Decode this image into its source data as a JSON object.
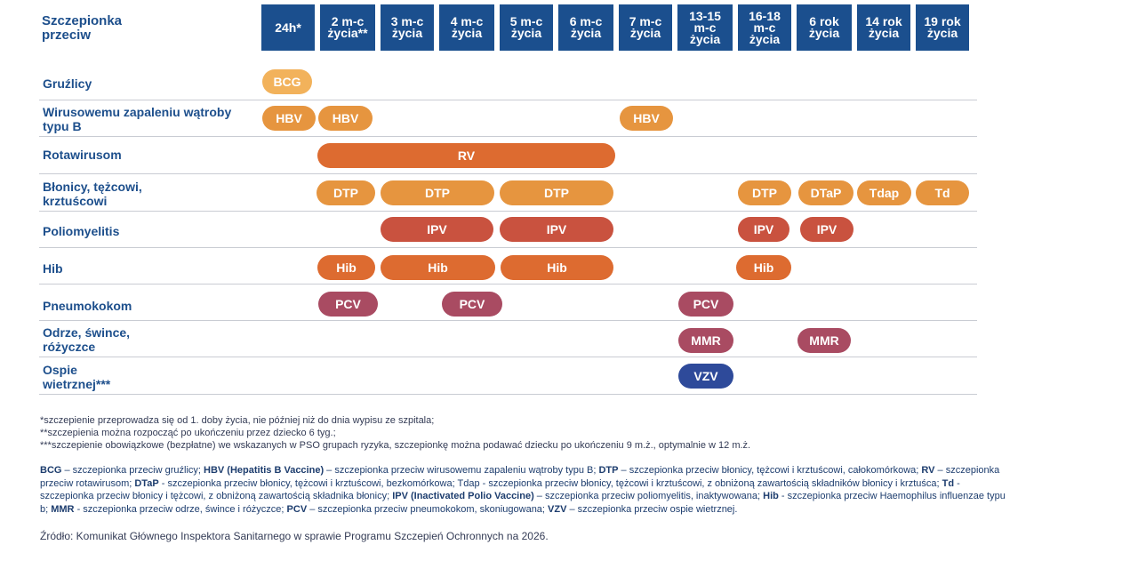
{
  "header": {
    "corner_label": "Szczepionka\nprzeciw"
  },
  "ages": [
    "24h*",
    "2 m-c\nżycia**",
    "3 m-c\nżycia",
    "4 m-c\nżycia",
    "5 m-c\nżycia",
    "6 m-c\nżycia",
    "7 m-c\nżycia",
    "13-15\nm-c\nżycia",
    "16-18\nm-c\nżycia",
    "6 rok\nżycia",
    "14 rok\nżycia",
    "19 rok\nżycia"
  ],
  "rows": [
    {
      "label": "Gruźlicy",
      "vaccines": [
        {
          "name": "BCG"
        }
      ]
    },
    {
      "label": "Wirusowemu zapaleniu wątroby\ntypu B",
      "vaccines": [
        {
          "name": "HBV"
        },
        {
          "name": "HBV"
        },
        {
          "name": "HBV"
        }
      ]
    },
    {
      "label": "Rotawirusom",
      "vaccines": [
        {
          "name": "RV"
        }
      ]
    },
    {
      "label": "Błonicy, tężcowi,\nkrztuścowi",
      "vaccines": [
        {
          "name": "DTP"
        },
        {
          "name": "DTP"
        },
        {
          "name": "DTP"
        },
        {
          "name": "DTP"
        },
        {
          "name": "DTaP"
        },
        {
          "name": "Tdap"
        },
        {
          "name": "Td"
        }
      ]
    },
    {
      "label": "Poliomyelitis",
      "vaccines": [
        {
          "name": "IPV"
        },
        {
          "name": "IPV"
        },
        {
          "name": "IPV"
        },
        {
          "name": "IPV"
        }
      ]
    },
    {
      "label": "Hib",
      "vaccines": [
        {
          "name": "Hib"
        },
        {
          "name": "Hib"
        },
        {
          "name": "Hib"
        },
        {
          "name": "Hib"
        }
      ]
    },
    {
      "label": "Pneumokokom",
      "vaccines": [
        {
          "name": "PCV"
        },
        {
          "name": "PCV"
        },
        {
          "name": "PCV"
        }
      ]
    },
    {
      "label": "Odrze, śwince,\nróżyczce",
      "vaccines": [
        {
          "name": "MMR"
        },
        {
          "name": "MMR"
        }
      ]
    },
    {
      "label": "Ospie\nwietrznej***",
      "vaccines": [
        {
          "name": "VZV"
        }
      ]
    }
  ],
  "footnotes": [
    "*szczepienie przeprowadza się od 1. doby życia, nie później niż do dnia wypisu ze szpitala;",
    "**szczepienia można rozpocząć po ukończeniu przez dziecko 6 tyg.;",
    "***szczepienie obowiązkowe (bezpłatne) we wskazanych w PSO grupach ryzyka, szczepionkę można podawać dziecku po ukończeniu 9 m.ż., optymalnie w 12 m.ż."
  ],
  "legend": [
    {
      "abbr": "BCG",
      "desc": " – szczepionka przeciw gruźlicy; "
    },
    {
      "abbr": "HBV (Hepatitis B Vaccine)",
      "desc": " – szczepionka przeciw wirusowemu zapaleniu wątroby typu B; "
    },
    {
      "abbr": "DTP",
      "desc": " – szczepionka przeciw błonicy, tężcowi i krztuścowi, całokomórkowa; "
    },
    {
      "abbr": "RV",
      "desc": " – szczepionka przeciw rotawirusom; "
    },
    {
      "abbr": "DTaP",
      "desc": " - szczepionka przeciw błonicy, tężcowi i krztuścowi, bezkomórkowa; Tdap - szczepionka przeciw błonicy, tężcowi i krztuścowi, z obniżoną zawartością składników błonicy i krztuśca; "
    },
    {
      "abbr": "Td",
      "desc": " - szczepionka przeciw błonicy i tężcowi, z obniżoną zawartością składnika błonicy; "
    },
    {
      "abbr": "IPV (Inactivated Polio Vaccine)",
      "desc": " – szczepionka przeciw poliomyelitis, inaktywowana; "
    },
    {
      "abbr": "Hib",
      "desc": " -  szczepionka przeciw Haemophilus influenzae typu b; "
    },
    {
      "abbr": "MMR",
      "desc": " -  szczepionka przeciw odrze, śwince i różyczce; "
    },
    {
      "abbr": "PCV",
      "desc": " – szczepionka przeciw pneumokokom, skoniugowana; "
    },
    {
      "abbr": "VZV",
      "desc": " – szczepionka przeciw ospie wietrznej."
    }
  ],
  "source": "Źródło: Komunikat Głównego Inspektora Sanitarnego w sprawie Programu Szczepień Ochronnych na 2026.",
  "colors": {
    "header_blue": "#1b4f8e",
    "light_orange": "#f2b25b",
    "orange": "#dd6b30",
    "red": "#c9523f",
    "plum": "#a94b62",
    "navy": "#2e4a9a"
  }
}
